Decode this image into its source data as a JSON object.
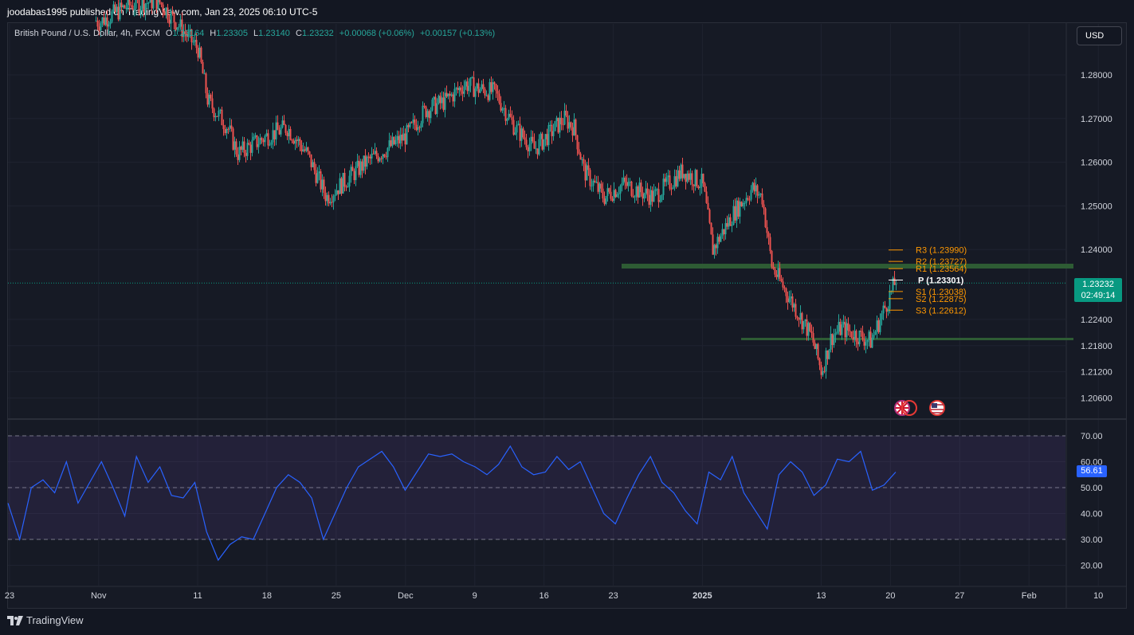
{
  "header": {
    "published": "joodabas1995 published on TradingView.com, Jan 23, 2025 06:10 UTC-5"
  },
  "legend": {
    "symbol": "British Pound / U.S. Dollar, 4h, FXCM",
    "o_label": "O",
    "o_value": "1.23164",
    "h_label": "H",
    "h_value": "1.23305",
    "l_label": "L",
    "l_value": "1.23140",
    "c_label": "C",
    "c_value": "1.23232",
    "change": "+0.00068 (+0.06%)",
    "change2": "+0.00157 (+0.13%)"
  },
  "currency_button": "USD",
  "last_price": {
    "value": "1.23232",
    "countdown": "02:49:14"
  },
  "rsi_value": "56.61",
  "brand": "TradingView",
  "colors": {
    "up": "#26a69a",
    "down": "#ef5350",
    "rsi": "#2962ff",
    "pivot": "#ff9800",
    "zone": "#2e5c34"
  },
  "chart_data": [
    {
      "type": "candlestick",
      "price_axis": [
        "1.28000",
        "1.27000",
        "1.26000",
        "1.25000",
        "1.24000",
        "1.22400",
        "1.21800",
        "1.21200",
        "1.20600"
      ],
      "time_axis": [
        "23",
        "Nov",
        "11",
        "18",
        "25",
        "Dec",
        "9",
        "16",
        "23",
        "2025",
        "13",
        "20",
        "27",
        "Feb",
        "10"
      ],
      "pivots": [
        {
          "label": "R3 (1.23990)",
          "value": 1.2399
        },
        {
          "label": "R2 (1.23727)",
          "value": 1.23727
        },
        {
          "label": "R1 (1.23564)",
          "value": 1.23564
        },
        {
          "label": "P (1.23301)",
          "value": 1.23301
        },
        {
          "label": "S1 (1.23038)",
          "value": 1.23038
        },
        {
          "label": "S2 (1.22875)",
          "value": 1.22875
        },
        {
          "label": "S3 (1.22612)",
          "value": 1.22612
        }
      ],
      "resistance_zone": 1.2362,
      "support_line": 1.2195,
      "close_path": [
        [
          "2024-10-23",
          1.3
        ],
        [
          "2024-10-28",
          1.298
        ],
        [
          "2024-11-01",
          1.292
        ],
        [
          "2024-11-04",
          1.296
        ],
        [
          "2024-11-07",
          1.297
        ],
        [
          "2024-11-11",
          1.286
        ],
        [
          "2024-11-12",
          1.274
        ],
        [
          "2024-11-14",
          1.268
        ],
        [
          "2024-11-15",
          1.262
        ],
        [
          "2024-11-18",
          1.266
        ],
        [
          "2024-11-20",
          1.268
        ],
        [
          "2024-11-22",
          1.262
        ],
        [
          "2024-11-24",
          1.252
        ],
        [
          "2024-11-26",
          1.256
        ],
        [
          "2024-11-28",
          1.26
        ],
        [
          "2024-12-02",
          1.266
        ],
        [
          "2024-12-04",
          1.272
        ],
        [
          "2024-12-06",
          1.274
        ],
        [
          "2024-12-08",
          1.278
        ],
        [
          "2024-12-09",
          1.277
        ],
        [
          "2024-12-11",
          1.276
        ],
        [
          "2024-12-13",
          1.268
        ],
        [
          "2024-12-15",
          1.263
        ],
        [
          "2024-12-18",
          1.27
        ],
        [
          "2024-12-19",
          1.268
        ],
        [
          "2024-12-20",
          1.258
        ],
        [
          "2024-12-22",
          1.252
        ],
        [
          "2024-12-24",
          1.255
        ],
        [
          "2024-12-27",
          1.252
        ],
        [
          "2024-12-30",
          1.258
        ],
        [
          "2025-01-01",
          1.255
        ],
        [
          "2025-01-02",
          1.24
        ],
        [
          "2025-01-04",
          1.248
        ],
        [
          "2025-01-06",
          1.254
        ],
        [
          "2025-01-07",
          1.252
        ],
        [
          "2025-01-08",
          1.236
        ],
        [
          "2025-01-10",
          1.228
        ],
        [
          "2025-01-12",
          1.22
        ],
        [
          "2025-01-13",
          1.212
        ],
        [
          "2025-01-14",
          1.22
        ],
        [
          "2025-01-15",
          1.222
        ],
        [
          "2025-01-17",
          1.22
        ],
        [
          "2025-01-18",
          1.219
        ],
        [
          "2025-01-20",
          1.23
        ],
        [
          "2025-01-21",
          1.236
        ],
        [
          "2025-01-22",
          1.233
        ],
        [
          "2025-01-23",
          1.2323
        ]
      ]
    },
    {
      "type": "line",
      "name": "RSI",
      "y_axis": [
        "70.00",
        "60.00",
        "50.00",
        "40.00",
        "30.00",
        "20.00"
      ],
      "levels": [
        70,
        50,
        30
      ],
      "values": [
        44,
        30,
        50,
        53,
        48,
        60,
        44,
        52,
        60,
        50,
        39,
        62,
        52,
        58,
        47,
        46,
        52,
        33,
        22,
        28,
        31,
        30,
        40,
        50,
        55,
        52,
        46,
        30,
        40,
        50,
        58,
        61,
        64,
        58,
        49,
        56,
        63,
        62,
        63,
        60,
        58,
        55,
        59,
        66,
        58,
        55,
        56,
        62,
        57,
        60,
        50,
        40,
        36,
        46,
        55,
        62,
        52,
        48,
        41,
        36,
        56,
        53,
        62,
        48,
        41,
        34,
        55,
        60,
        56,
        47,
        51,
        61,
        60,
        64,
        49,
        51,
        56
      ]
    }
  ]
}
